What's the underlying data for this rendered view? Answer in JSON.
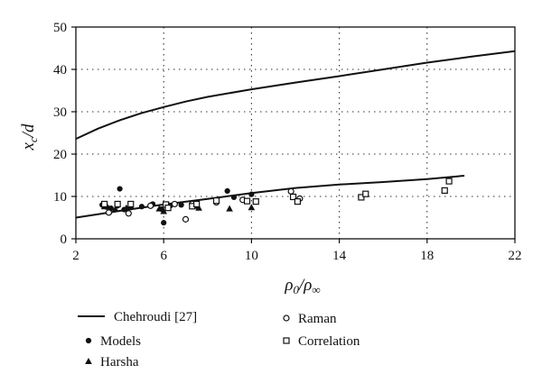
{
  "chart_data": {
    "type": "scatter",
    "xlabel": "ρ0/ρ∞",
    "ylabel": "xc/d",
    "xlim": [
      2,
      22
    ],
    "ylim": [
      0,
      50
    ],
    "xticks": [
      2,
      6,
      10,
      14,
      18,
      22
    ],
    "yticks": [
      0,
      10,
      20,
      30,
      40,
      50
    ],
    "grid": true,
    "legend_position": "below",
    "series": [
      {
        "name": "Chehroudi [27]",
        "kind": "line",
        "marker": "none",
        "points": [
          [
            2.0,
            23.6
          ],
          [
            3.0,
            26.0
          ],
          [
            4.0,
            28.0
          ],
          [
            5.0,
            29.7
          ],
          [
            6.0,
            31.1
          ],
          [
            7.0,
            32.4
          ],
          [
            8.0,
            33.5
          ],
          [
            10.0,
            35.3
          ],
          [
            12.0,
            36.9
          ],
          [
            14.0,
            38.4
          ],
          [
            16.0,
            40.0
          ],
          [
            18.0,
            41.6
          ],
          [
            20.0,
            43.0
          ],
          [
            22.0,
            44.3
          ]
        ]
      },
      {
        "name": "Chehroudi [27]",
        "kind": "line",
        "marker": "none",
        "points": [
          [
            2.0,
            5.0
          ],
          [
            4.0,
            6.6
          ],
          [
            6.0,
            8.1
          ],
          [
            8.0,
            9.4
          ],
          [
            10.0,
            10.8
          ],
          [
            12.0,
            12.0
          ],
          [
            14.0,
            12.8
          ],
          [
            16.0,
            13.4
          ],
          [
            18.0,
            14.1
          ],
          [
            19.7,
            14.9
          ]
        ]
      },
      {
        "name": "Models",
        "kind": "scatter",
        "marker": "filled-circle",
        "points": [
          [
            3.2,
            8.0
          ],
          [
            3.4,
            7.5
          ],
          [
            3.6,
            7.2
          ],
          [
            3.9,
            7.8
          ],
          [
            4.0,
            11.8
          ],
          [
            4.2,
            6.9
          ],
          [
            4.5,
            7.4
          ],
          [
            5.0,
            7.6
          ],
          [
            5.5,
            8.2
          ],
          [
            5.9,
            7.0
          ],
          [
            6.0,
            3.8
          ],
          [
            6.3,
            7.8
          ],
          [
            6.8,
            8.0
          ],
          [
            7.5,
            7.7
          ],
          [
            8.9,
            11.3
          ],
          [
            9.2,
            9.8
          ],
          [
            10.0,
            10.5
          ]
        ]
      },
      {
        "name": "Harsha",
        "kind": "scatter",
        "marker": "filled-triangle",
        "points": [
          [
            3.3,
            7.6
          ],
          [
            3.8,
            7.0
          ],
          [
            4.3,
            7.3
          ],
          [
            5.8,
            7.1
          ],
          [
            6.0,
            6.5
          ],
          [
            7.6,
            7.3
          ],
          [
            9.0,
            7.1
          ],
          [
            10.0,
            7.4
          ]
        ]
      },
      {
        "name": "Raman",
        "kind": "scatter",
        "marker": "open-circle",
        "points": [
          [
            3.5,
            6.2
          ],
          [
            4.4,
            6.0
          ],
          [
            5.4,
            7.8
          ],
          [
            6.5,
            8.2
          ],
          [
            7.0,
            4.6
          ],
          [
            7.3,
            8.2
          ],
          [
            8.4,
            8.6
          ],
          [
            9.6,
            9.2
          ],
          [
            11.8,
            11.2
          ],
          [
            12.2,
            9.5
          ]
        ]
      },
      {
        "name": "Correlation",
        "kind": "scatter",
        "marker": "open-square",
        "points": [
          [
            3.3,
            8.2
          ],
          [
            3.9,
            8.2
          ],
          [
            4.5,
            8.2
          ],
          [
            6.1,
            8.1
          ],
          [
            6.2,
            7.3
          ],
          [
            7.3,
            7.7
          ],
          [
            7.5,
            8.2
          ],
          [
            8.4,
            9.0
          ],
          [
            9.8,
            8.9
          ],
          [
            10.2,
            8.8
          ],
          [
            11.9,
            9.9
          ],
          [
            12.1,
            8.8
          ],
          [
            15.0,
            9.8
          ],
          [
            15.2,
            10.6
          ],
          [
            18.8,
            11.4
          ],
          [
            19.0,
            13.6
          ]
        ]
      }
    ],
    "legend": [
      {
        "label": "Chehroudi [27]",
        "marker": "line"
      },
      {
        "label": "Models",
        "marker": "filled-circle"
      },
      {
        "label": "Harsha",
        "marker": "filled-triangle"
      },
      {
        "label": "Raman",
        "marker": "open-circle"
      },
      {
        "label": "Correlation",
        "marker": "open-square"
      }
    ]
  }
}
